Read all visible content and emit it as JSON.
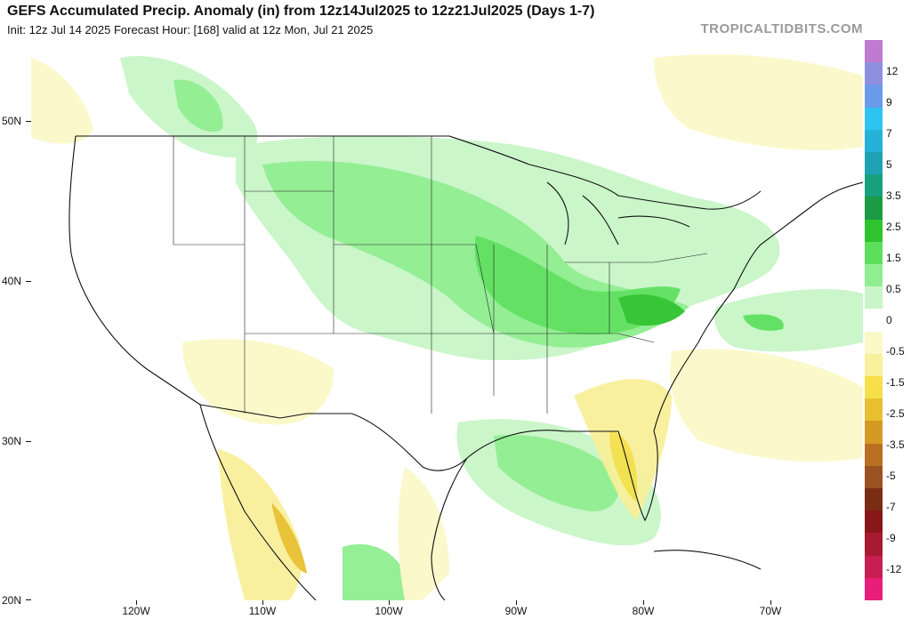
{
  "header": {
    "title": "GEFS Accumulated Precip. Anomaly (in) from 12z14Jul2025 to 12z21Jul2025 (Days 1-7)",
    "subtitle": "Init: 12z Jul 14 2025   Forecast Hour: [168]   valid at 12z Mon, Jul 21 2025",
    "brand": "TROPICALTIDBITS.COM"
  },
  "axes": {
    "lat_labels": [
      "50N",
      "40N",
      "30N",
      "20N"
    ],
    "lon_labels": [
      "120W",
      "110W",
      "100W",
      "90W",
      "80W",
      "70W"
    ]
  },
  "legend": {
    "labels": [
      "12",
      "9",
      "7",
      "5",
      "3.5",
      "2.5",
      "1.5",
      "0.5",
      "0",
      "-0.5",
      "-1.5",
      "-2.5",
      "-3.5",
      "-5",
      "-7",
      "-9",
      "-12"
    ],
    "colors": [
      "#c07ad0",
      "#8f8fe0",
      "#6a9ae8",
      "#2fc4f0",
      "#24b2d8",
      "#1fa3b3",
      "#17a07c",
      "#1c9a45",
      "#2ec42e",
      "#5ce05c",
      "#8fee8f",
      "#c8f6c8",
      "#ffffff",
      "#fbf8c8",
      "#f8f09a",
      "#f5e04a",
      "#e8c030",
      "#d49a22",
      "#b87020",
      "#9a5222",
      "#7a2c14",
      "#881818",
      "#a81a30",
      "#c81e52",
      "#e81e7a"
    ]
  },
  "regions": {
    "wet": [
      "Upper Midwest",
      "Ohio Valley",
      "Mid-Atlantic",
      "Gulf of Mexico",
      "Pacific Northwest"
    ],
    "dry": [
      "Florida Peninsula",
      "Desert Southwest",
      "Western Mexico",
      "Western Atlantic"
    ]
  }
}
